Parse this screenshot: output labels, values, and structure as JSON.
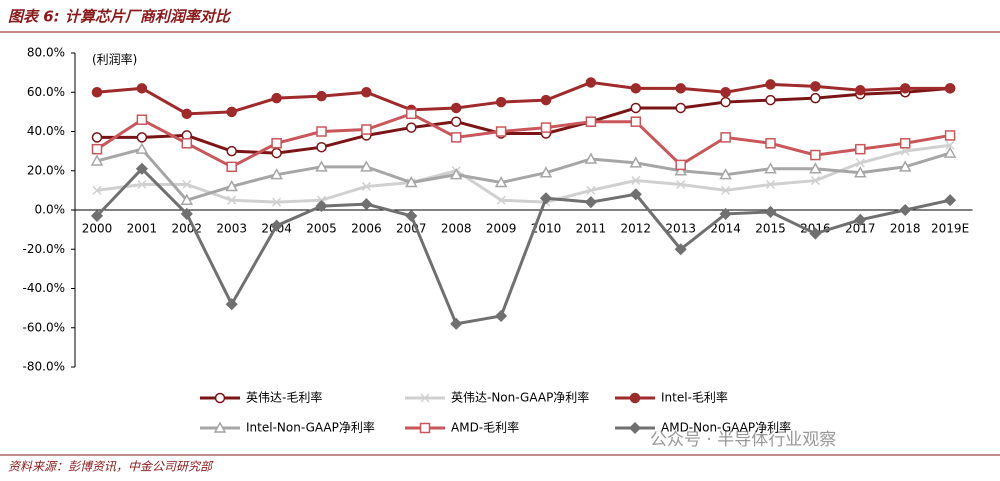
{
  "header": {
    "title": "图表 6: 计算芯片厂商利润率对比"
  },
  "footer": {
    "source": "资料来源：彭博资讯，中金公司研究部",
    "watermark": "公众号 · 半导体行业观察"
  },
  "chart_data": {
    "type": "line",
    "y_label": "(利润率)",
    "categories": [
      "2000",
      "2001",
      "2002",
      "2003",
      "2004",
      "2005",
      "2006",
      "2007",
      "2008",
      "2009",
      "2010",
      "2011",
      "2012",
      "2013",
      "2014",
      "2015",
      "2016",
      "2017",
      "2018",
      "2019E"
    ],
    "ylim": [
      -80,
      80
    ],
    "yticks": [
      {
        "value": -80,
        "label": "-80.0%"
      },
      {
        "value": -60,
        "label": "-60.0%"
      },
      {
        "value": -40,
        "label": "-40.0%"
      },
      {
        "value": -20,
        "label": "-20.0%"
      },
      {
        "value": 0,
        "label": "0.0%"
      },
      {
        "value": 20,
        "label": "20.0%"
      },
      {
        "value": 40,
        "label": "40.0%"
      },
      {
        "value": 60,
        "label": "60.0%"
      },
      {
        "value": 80,
        "label": "80.0%"
      }
    ],
    "series": [
      {
        "name": "英伟达-毛利率",
        "color": "#7b1416",
        "marker": "circle-open",
        "values": [
          37,
          37,
          38,
          30,
          29,
          32,
          38,
          42,
          45,
          39,
          39,
          45,
          52,
          52,
          55,
          56,
          57,
          59,
          60,
          62
        ]
      },
      {
        "name": "英伟达-Non-GAAP净利率",
        "color": "#d0d0d0",
        "marker": "x",
        "values": [
          10,
          13,
          13,
          5,
          4,
          5,
          12,
          14,
          20,
          5,
          4,
          10,
          15,
          13,
          10,
          13,
          15,
          24,
          30,
          33
        ]
      },
      {
        "name": "Intel-毛利率",
        "color": "#9e2a2b",
        "marker": "circle",
        "values": [
          60,
          62,
          49,
          50,
          57,
          58,
          60,
          51,
          52,
          55,
          56,
          65,
          62,
          62,
          60,
          64,
          63,
          61,
          62,
          62
        ]
      },
      {
        "name": "Intel-Non-GAAP净利率",
        "color": "#a6a6a6",
        "marker": "triangle-open",
        "values": [
          25,
          31,
          5,
          12,
          18,
          22,
          22,
          14,
          18,
          14,
          19,
          26,
          24,
          20,
          18,
          21,
          21,
          19,
          22,
          29
        ]
      },
      {
        "name": "AMD-毛利率",
        "color": "#c8565a",
        "marker": "square-open",
        "values": [
          31,
          46,
          34,
          22,
          34,
          40,
          41,
          49,
          37,
          40,
          42,
          45,
          45,
          23,
          37,
          34,
          28,
          31,
          34,
          38
        ]
      },
      {
        "name": "AMD-Non-GAAP净利率",
        "color": "#707070",
        "marker": "diamond",
        "values": [
          -3,
          21,
          -2,
          -48,
          -8,
          2,
          3,
          -3,
          -58,
          -54,
          6,
          4,
          8,
          -20,
          -2,
          -1,
          -12,
          -5,
          0,
          5
        ]
      }
    ]
  }
}
